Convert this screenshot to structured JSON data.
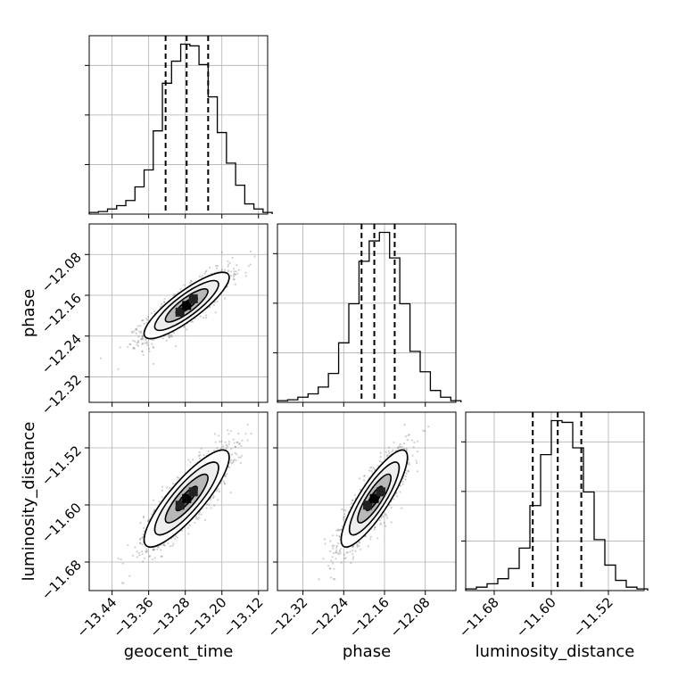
{
  "chart_data": {
    "type": "corner",
    "parameters": [
      {
        "name": "geocent_time",
        "label": "geocent_time",
        "range": [
          -13.49,
          -13.1
        ],
        "ticks": [
          "−13.44",
          "−13.36",
          "−13.28",
          "−13.20",
          "−13.12"
        ],
        "quantiles": [
          -13.323,
          -13.277,
          -13.23
        ],
        "hist_bins": [
          -13.49,
          -13.47,
          -13.45,
          -13.43,
          -13.41,
          -13.39,
          -13.37,
          -13.35,
          -13.33,
          -13.31,
          -13.29,
          -13.27,
          -13.25,
          -13.23,
          -13.21,
          -13.19,
          -13.17,
          -13.15,
          -13.13,
          -13.11
        ],
        "hist_counts": [
          0.01,
          0.015,
          0.03,
          0.05,
          0.08,
          0.16,
          0.26,
          0.49,
          0.77,
          0.9,
          1.0,
          0.99,
          0.88,
          0.69,
          0.48,
          0.3,
          0.17,
          0.06,
          0.03,
          0.01
        ]
      },
      {
        "name": "phase",
        "label": "phase",
        "range": [
          -12.37,
          -12.02
        ],
        "ticks": [
          "−12.32",
          "−12.24",
          "−12.16",
          "−12.08"
        ],
        "quantiles": [
          -12.205,
          -12.18,
          -12.14
        ],
        "hist_bins": [
          -12.37,
          -12.35,
          -12.33,
          -12.31,
          -12.29,
          -12.27,
          -12.25,
          -12.23,
          -12.21,
          -12.19,
          -12.17,
          -12.15,
          -12.13,
          -12.11,
          -12.09,
          -12.07,
          -12.05,
          -12.03
        ],
        "hist_counts": [
          0.01,
          0.015,
          0.03,
          0.05,
          0.09,
          0.17,
          0.35,
          0.58,
          0.83,
          0.95,
          1.0,
          0.85,
          0.58,
          0.3,
          0.18,
          0.07,
          0.03,
          0.01
        ]
      },
      {
        "name": "luminosity_distance",
        "label": "luminosity_distance",
        "range": [
          -11.72,
          -11.47
        ],
        "ticks": [
          "−11.68",
          "−11.60",
          "−11.52"
        ],
        "quantiles": [
          -11.626,
          -11.591,
          -11.558
        ],
        "hist_bins": [
          -11.72,
          -11.705,
          -11.69,
          -11.675,
          -11.66,
          -11.645,
          -11.63,
          -11.615,
          -11.6,
          -11.585,
          -11.57,
          -11.555,
          -11.54,
          -11.525,
          -11.51,
          -11.495,
          -11.48
        ],
        "hist_counts": [
          0.01,
          0.02,
          0.04,
          0.07,
          0.13,
          0.25,
          0.5,
          0.8,
          1.0,
          0.99,
          0.84,
          0.58,
          0.3,
          0.15,
          0.06,
          0.02,
          0.01
        ]
      }
    ],
    "grid": true,
    "quantile_lines": "dashed",
    "correlation": 0.85
  }
}
